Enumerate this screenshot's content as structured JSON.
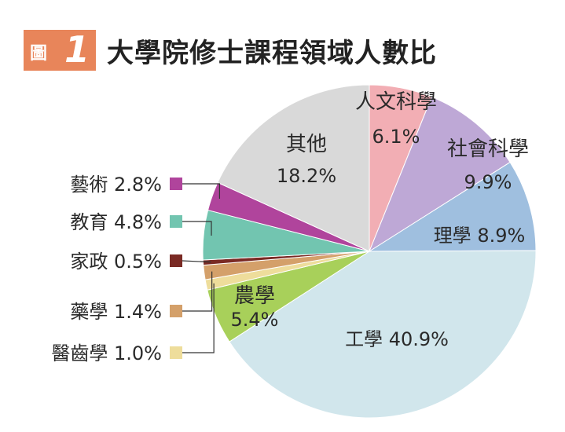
{
  "header": {
    "badge_label": "圖",
    "badge_number": "1",
    "title": "大學院修士課程領域人數比"
  },
  "chart_data": {
    "type": "pie",
    "title": "大學院修士課程領域人數比",
    "unit": "%",
    "slices": [
      {
        "name": "人文科學",
        "value": 6.1,
        "label": "6.1%",
        "color": "#f2aeb4"
      },
      {
        "name": "社會科學",
        "value": 9.9,
        "label": "9.9%",
        "color": "#bea8d6"
      },
      {
        "name": "理學",
        "value": 8.9,
        "label": "8.9%",
        "color": "#9fbfdf"
      },
      {
        "name": "工學",
        "value": 40.9,
        "label": "40.9%",
        "color": "#d1e6ec"
      },
      {
        "name": "農學",
        "value": 5.4,
        "label": "5.4%",
        "color": "#a8d05a"
      },
      {
        "name": "醫齒學",
        "value": 1.0,
        "label": "1.0%",
        "color": "#eedd9b"
      },
      {
        "name": "藥學",
        "value": 1.4,
        "label": "1.4%",
        "color": "#d4a06a"
      },
      {
        "name": "家政",
        "value": 0.5,
        "label": "0.5%",
        "color": "#7a2a24"
      },
      {
        "name": "教育",
        "value": 4.8,
        "label": "4.8%",
        "color": "#72c5b0"
      },
      {
        "name": "藝術",
        "value": 2.8,
        "label": "2.8%",
        "color": "#b0449c"
      },
      {
        "name": "其他",
        "value": 18.2,
        "label": "18.2%",
        "color": "#d9d9d9"
      }
    ]
  }
}
